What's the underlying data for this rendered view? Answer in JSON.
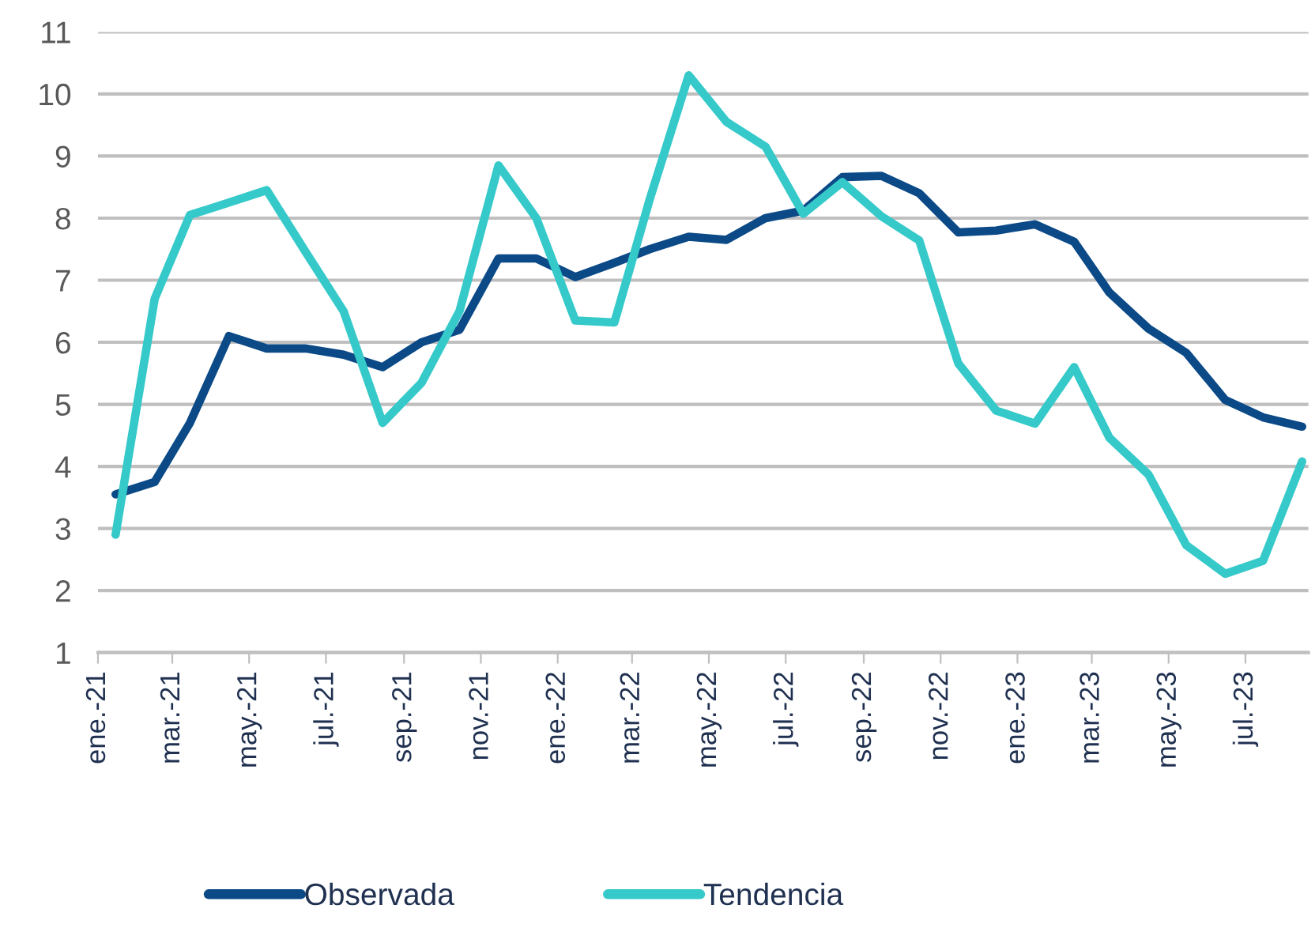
{
  "chart_data": {
    "type": "line",
    "x": [
      "2021-01-15",
      "2021-02-15",
      "2021-03-15",
      "2021-04-15",
      "2021-05-15",
      "2021-06-15",
      "2021-07-15",
      "2021-08-15",
      "2021-09-15",
      "2021-10-15",
      "2021-11-15",
      "2021-12-15",
      "2022-01-15",
      "2022-02-15",
      "2022-03-15",
      "2022-04-15",
      "2022-05-15",
      "2022-06-15",
      "2022-07-15",
      "2022-08-15",
      "2022-09-15",
      "2022-10-15",
      "2022-11-15",
      "2022-12-15",
      "2023-01-15",
      "2023-02-15",
      "2023-03-15",
      "2023-04-15",
      "2023-05-15",
      "2023-06-15",
      "2023-07-15",
      "2023-08-15"
    ],
    "series": [
      {
        "name": "Observada",
        "color": "#0b4a87",
        "values": [
          3.55,
          3.75,
          4.7,
          6.1,
          5.9,
          5.9,
          5.8,
          5.6,
          6.0,
          6.2,
          7.35,
          7.35,
          7.05,
          7.28,
          7.5,
          7.7,
          7.65,
          8.0,
          8.12,
          8.66,
          8.68,
          8.4,
          7.77,
          7.8,
          7.9,
          7.62,
          6.8,
          6.22,
          5.83,
          5.07,
          4.79,
          4.64
        ]
      },
      {
        "name": "Tendencia",
        "color": "#35c9c9",
        "values": [
          2.9,
          6.7,
          8.05,
          8.25,
          8.45,
          7.45,
          6.5,
          4.7,
          5.35,
          6.5,
          8.85,
          8.0,
          6.35,
          6.32,
          8.3,
          10.3,
          9.55,
          9.15,
          8.07,
          8.58,
          8.03,
          7.64,
          5.66,
          4.9,
          4.69,
          5.6,
          4.46,
          3.87,
          2.73,
          2.27,
          2.48,
          4.08
        ]
      }
    ],
    "xlim": [
      "2021-01-01",
      "2023-08-20"
    ],
    "xticks": [
      {
        "value": "2021-01-01",
        "label": "ene.-21"
      },
      {
        "value": "2021-03-01",
        "label": "mar.-21"
      },
      {
        "value": "2021-05-01",
        "label": "may.-21"
      },
      {
        "value": "2021-07-01",
        "label": "jul.-21"
      },
      {
        "value": "2021-09-01",
        "label": "sep.-21"
      },
      {
        "value": "2021-11-01",
        "label": "nov.-21"
      },
      {
        "value": "2022-01-01",
        "label": "ene.-22"
      },
      {
        "value": "2022-03-01",
        "label": "mar.-22"
      },
      {
        "value": "2022-05-01",
        "label": "may.-22"
      },
      {
        "value": "2022-07-01",
        "label": "jul.-22"
      },
      {
        "value": "2022-09-01",
        "label": "sep.-22"
      },
      {
        "value": "2022-11-01",
        "label": "nov.-22"
      },
      {
        "value": "2023-01-01",
        "label": "ene.-23"
      },
      {
        "value": "2023-03-01",
        "label": "mar.-23"
      },
      {
        "value": "2023-05-01",
        "label": "may.-23"
      },
      {
        "value": "2023-07-01",
        "label": "jul.-23"
      }
    ],
    "ylim": [
      1,
      11
    ],
    "yticks": [
      1,
      2,
      3,
      4,
      5,
      6,
      7,
      8,
      9,
      10,
      11
    ],
    "grid": "y",
    "legend": "bottom",
    "marker": "none",
    "line_style": "solid"
  }
}
